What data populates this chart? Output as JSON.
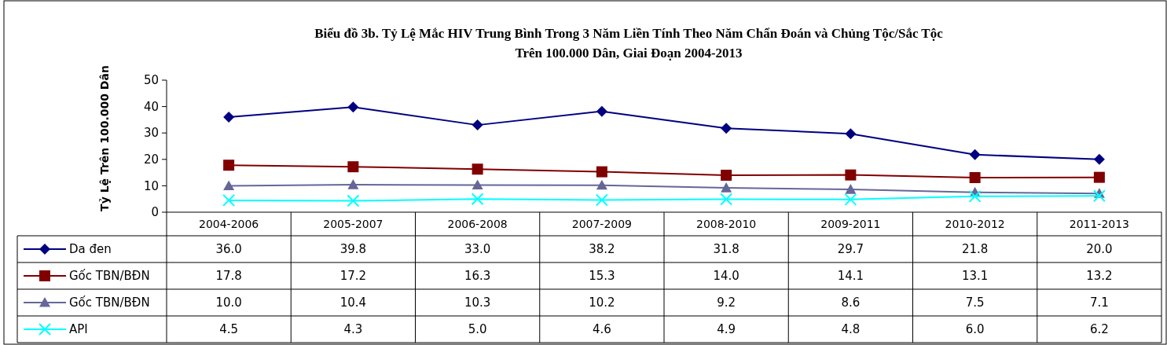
{
  "chart_data": {
    "type": "line",
    "title": "Biểu đồ 3b. Tỷ Lệ Mắc HIV Trung Bình Trong 3 Năm Liền Tính Theo Năm Chẩn Đoán và Chủng Tộc/Sắc Tộc Trên 100.000 Dân, Giai Đoạn 2004-2013",
    "ylabel": "Tỷ Lệ Trên 100.000 Dân",
    "categories": [
      "2004-2006",
      "2005-2007",
      "2006-2008",
      "2007-2009",
      "2008-2010",
      "2009-2011",
      "2010-2012",
      "2011-2013"
    ],
    "ylim": [
      0,
      50
    ],
    "yticks": [
      0,
      10,
      20,
      30,
      40,
      50
    ],
    "grid": false,
    "legend": "bottom",
    "series": [
      {
        "name": "Da đen",
        "color": "#000080",
        "marker": "diamond",
        "values": [
          36.0,
          39.8,
          33.0,
          38.2,
          31.8,
          29.7,
          21.8,
          20.0
        ],
        "value_labels": [
          "36.0",
          "39.8",
          "33.0",
          "38.2",
          "31.8",
          "29.7",
          "21.8",
          "20.0"
        ]
      },
      {
        "name": "Gốc TBN/BĐN",
        "color": "#800000",
        "marker": "square",
        "values": [
          17.8,
          17.2,
          16.3,
          15.3,
          14.0,
          14.1,
          13.1,
          13.2
        ],
        "value_labels": [
          "17.8",
          "17.2",
          "16.3",
          "15.3",
          "14.0",
          "14.1",
          "13.1",
          "13.2"
        ]
      },
      {
        "name": "Gốc TBN/BĐN",
        "color": "#666699",
        "marker": "triangle",
        "values": [
          10.0,
          10.4,
          10.3,
          10.2,
          9.2,
          8.6,
          7.5,
          7.1
        ],
        "value_labels": [
          "10.0",
          "10.4",
          "10.3",
          "10.2",
          "9.2",
          "8.6",
          "7.5",
          "7.1"
        ]
      },
      {
        "name": "API",
        "color": "#00ffff",
        "marker": "cross",
        "values": [
          4.5,
          4.3,
          5.0,
          4.6,
          4.9,
          4.8,
          6.0,
          6.2
        ],
        "value_labels": [
          "4.5",
          "4.3",
          "5.0",
          "4.6",
          "4.9",
          "4.8",
          "6.0",
          "6.2"
        ]
      }
    ]
  }
}
